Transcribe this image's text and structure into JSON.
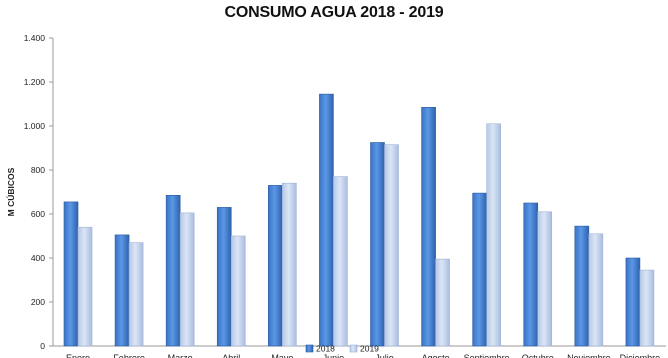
{
  "chart_data": {
    "type": "bar",
    "title": "CONSUMO AGUA 2018 - 2019",
    "xlabel": "",
    "ylabel": "M CÚBICOS",
    "categories": [
      "Enero",
      "Febrero",
      "Marzo",
      "Abril",
      "Mayo",
      "Junio",
      "Julio",
      "Agosto",
      "Septiembre",
      "Octubre",
      "Noviembre",
      "Diciembre"
    ],
    "series": [
      {
        "name": "2018",
        "values": [
          655,
          505,
          685,
          630,
          730,
          1145,
          925,
          1085,
          695,
          650,
          545,
          400
        ],
        "color": "#4a86d8"
      },
      {
        "name": "2019",
        "values": [
          540,
          470,
          605,
          500,
          740,
          770,
          915,
          395,
          1010,
          610,
          510,
          345
        ],
        "color": "#c4d4ee"
      }
    ],
    "ylim": [
      0,
      1400
    ],
    "yticks": [
      0,
      200,
      400,
      600,
      800,
      1000,
      1200,
      1400
    ],
    "ytick_labels": [
      "0",
      "200",
      "400",
      "600",
      "800",
      "1.000",
      "1.200",
      "1.400"
    ],
    "grid": false,
    "legend_position": "bottom"
  }
}
